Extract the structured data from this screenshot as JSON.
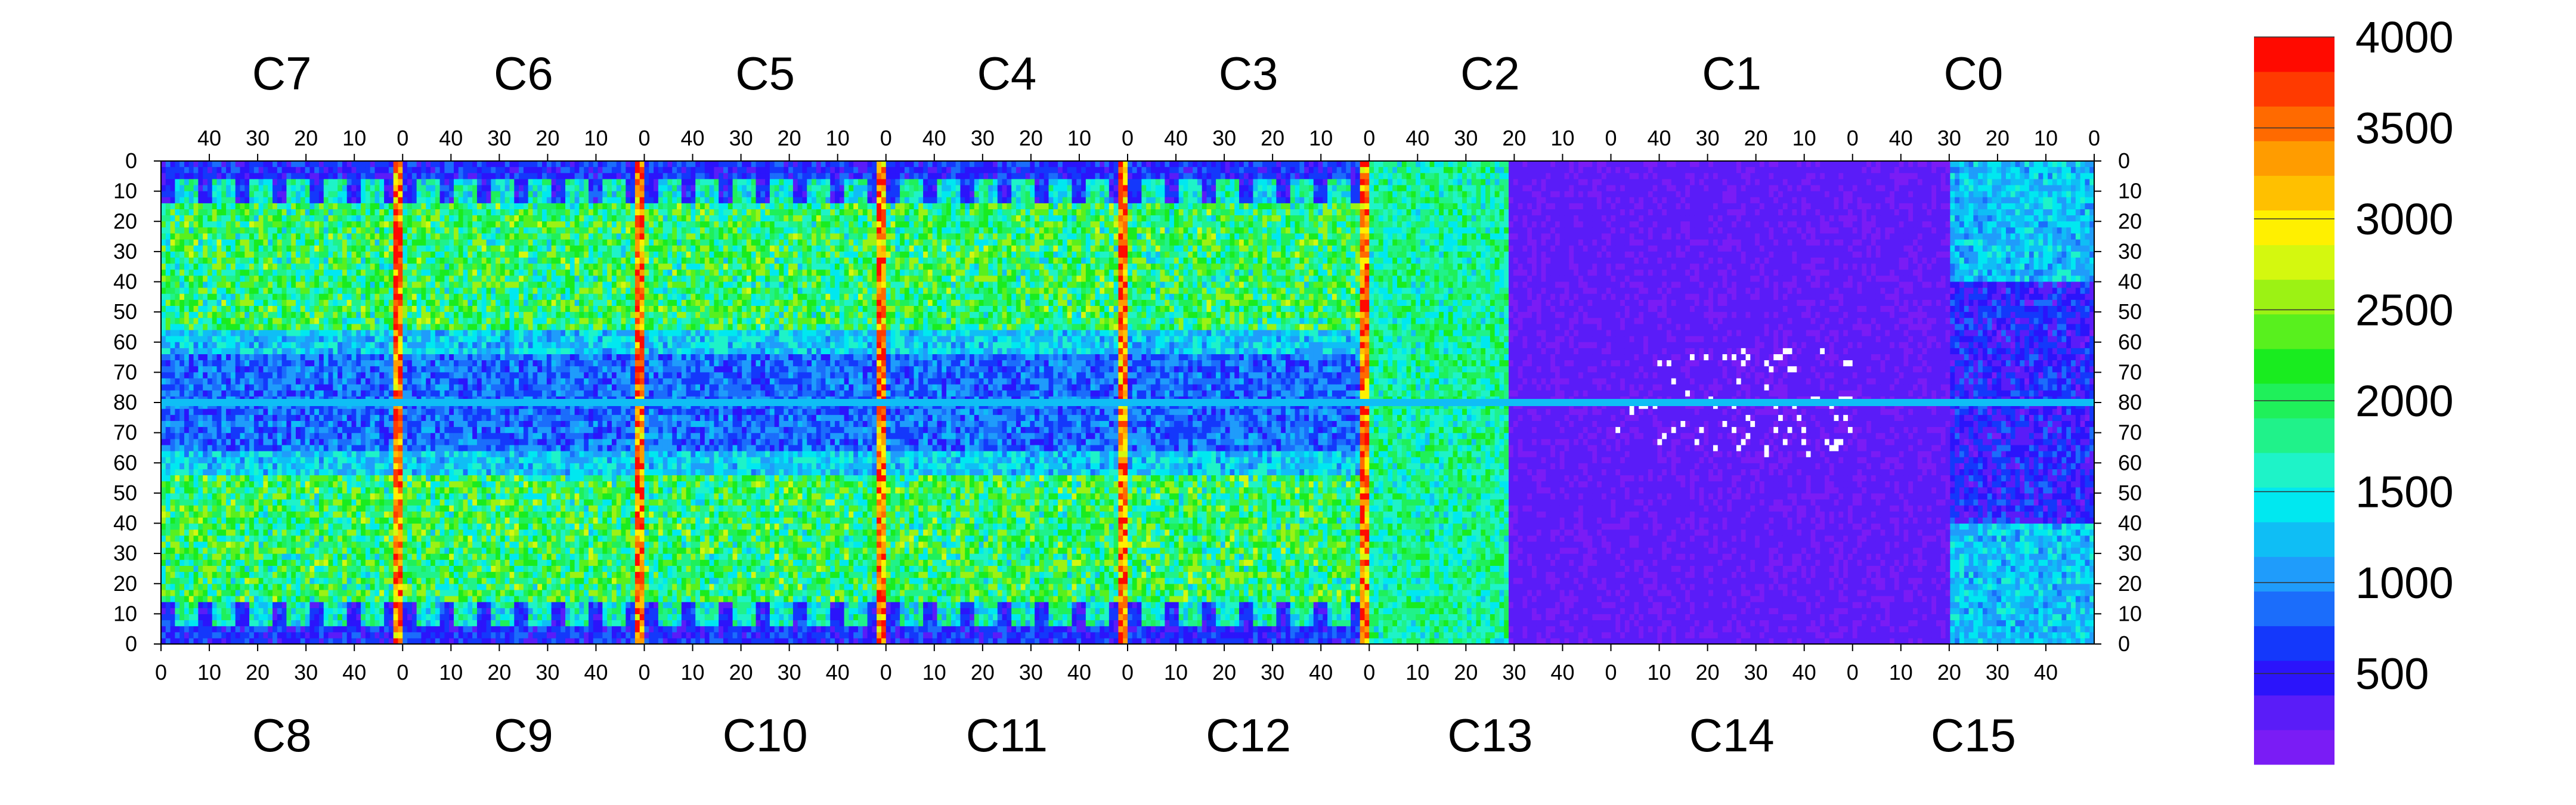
{
  "chart_data": {
    "type": "heatmap",
    "title": "",
    "color_scale": {
      "min": 0,
      "max": 4000,
      "tick_labels": [
        "500",
        "1000",
        "1500",
        "2000",
        "2500",
        "3000",
        "3500",
        "4000"
      ],
      "tick_values": [
        500,
        1000,
        1500,
        2000,
        2500,
        3000,
        3500,
        4000
      ],
      "colors": [
        "#7a1cf5",
        "#5a1cf8",
        "#2b14fb",
        "#1438fb",
        "#1b6dfb",
        "#1f9cfb",
        "#0fbef5",
        "#00e8f0",
        "#1ef3c8",
        "#20f28a",
        "#1ff05a",
        "#19ec1f",
        "#58f01e",
        "#9cf214",
        "#d4f80f",
        "#fff000",
        "#ffc000",
        "#ff9c00",
        "#ff6a00",
        "#ff3a00",
        "#ff0a00"
      ]
    },
    "top_chips": [
      "C7",
      "C6",
      "C5",
      "C4",
      "C3",
      "C2",
      "C1",
      "C0"
    ],
    "bottom_chips": [
      "C8",
      "C9",
      "C10",
      "C11",
      "C12",
      "C13",
      "C14",
      "C15"
    ],
    "top_column_tick_labels": [
      "40",
      "30",
      "20",
      "10",
      "0"
    ],
    "bottom_column_tick_labels": [
      "0",
      "10",
      "20",
      "30",
      "40"
    ],
    "row_tick_labels": [
      "0",
      "10",
      "20",
      "30",
      "40",
      "50",
      "60",
      "70",
      "80",
      "70",
      "60",
      "50",
      "40",
      "30",
      "20",
      "10",
      "0"
    ],
    "columns_per_chip": 52,
    "rows_per_half": 80,
    "cell_value_range": [
      0,
      4000
    ],
    "colorbar_values": [
      4000,
      3500,
      3000,
      2500,
      2000,
      1500,
      1000,
      500
    ],
    "hot_columns_local_index": [
      0
    ],
    "notes_visible": []
  }
}
